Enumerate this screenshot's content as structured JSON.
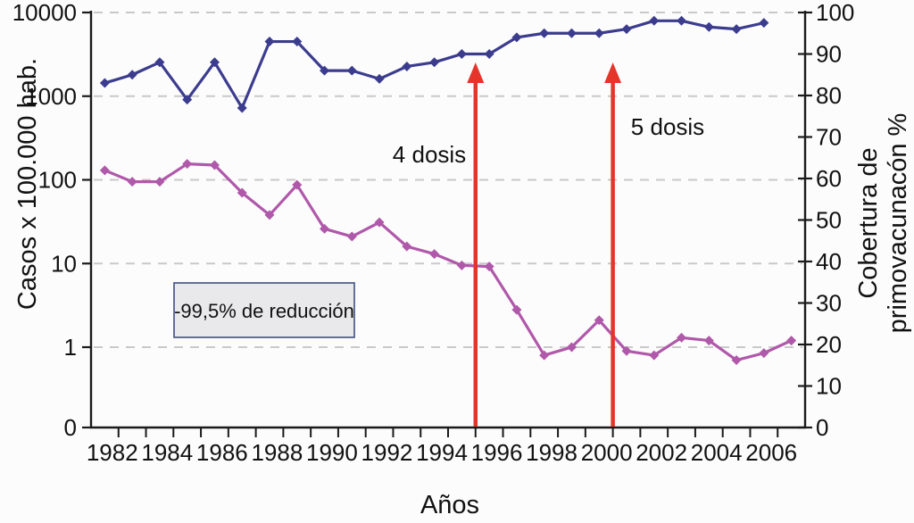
{
  "chart_data": {
    "type": "line",
    "title": "",
    "xlabel": "Años",
    "x": [
      1982,
      1983,
      1984,
      1985,
      1986,
      1987,
      1988,
      1989,
      1990,
      1991,
      1992,
      1993,
      1994,
      1995,
      1996,
      1997,
      1998,
      1999,
      2000,
      2001,
      2002,
      2003,
      2004,
      2005,
      2006,
      2007
    ],
    "x_tick_labels": [
      "1982",
      "1984",
      "1986",
      "1988",
      "1990",
      "1992",
      "1994",
      "1996",
      "1998",
      "2000",
      "2002",
      "2004",
      "2006"
    ],
    "left_axis": {
      "label": "Casos x 100.000 hab.",
      "scale": "log",
      "tick_labels": [
        "10000",
        "1000",
        "100",
        "10",
        "1",
        "0"
      ]
    },
    "right_axis": {
      "label": "Cobertura de primovacunacón %",
      "label_line1": "Cobertura de",
      "label_line2": "primovacunacón %",
      "min": 0,
      "max": 100,
      "tick_labels": [
        "0",
        "10",
        "20",
        "30",
        "40",
        "50",
        "60",
        "70",
        "80",
        "90",
        "100"
      ]
    },
    "series": [
      {
        "name": "Casos x 100.000 hab.",
        "axis": "left",
        "color": "#b058aa",
        "values": [
          130,
          95,
          95,
          155,
          150,
          70,
          38,
          87,
          26,
          21,
          31,
          16,
          13,
          9.5,
          9.2,
          2.8,
          0.8,
          1,
          2.1,
          0.9,
          0.8,
          1.3,
          1.2,
          0.7,
          0.85,
          1.2
        ]
      },
      {
        "name": "Cobertura de primovacunacón %",
        "axis": "right",
        "color": "#3c3c8f",
        "values": [
          83,
          85,
          88,
          79,
          88,
          77,
          93,
          93,
          86,
          86,
          84,
          87,
          88,
          90,
          90,
          94,
          95,
          95,
          95,
          96,
          98,
          98,
          96.5,
          96,
          97.5,
          null
        ]
      }
    ],
    "annotations": {
      "arrows": [
        {
          "label": "4 dosis",
          "at_year": 1995.5,
          "color": "#e5352b"
        },
        {
          "label": "5 dosis",
          "at_year": 2000.5,
          "color": "#e5352b"
        }
      ],
      "box": "-99,5% de reducción"
    },
    "colors": {
      "grid": "#c9c9c9",
      "axis": "#1a1a1a",
      "box_fill": "#e9e9eb",
      "box_border": "#40507e"
    }
  }
}
